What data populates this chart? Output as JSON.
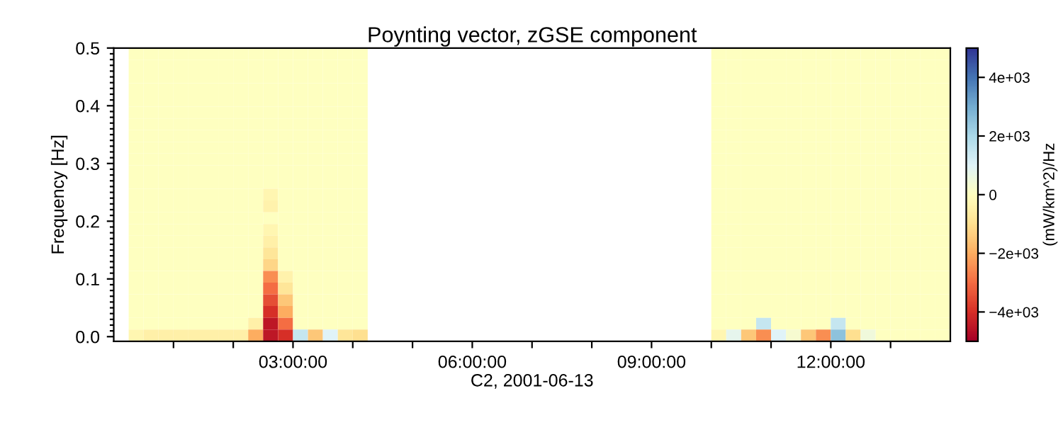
{
  "chart_data": {
    "type": "heatmap",
    "title": "Poynting vector, zGSE component",
    "xlabel": "C2, 2001-06-13",
    "ylabel": "Frequency [Hz]",
    "clabel": "(mW/km^2)/Hz",
    "x": [
      0.375,
      0.625,
      0.875,
      1.125,
      1.375,
      1.625,
      1.875,
      2.125,
      2.375,
      2.625,
      2.875,
      3.125,
      3.375,
      3.625,
      3.875,
      4.125,
      4.375,
      4.625,
      4.875,
      5.125,
      5.375,
      5.625,
      5.875,
      6.125,
      6.375,
      6.625,
      6.875,
      7.125,
      7.375,
      7.625,
      7.875,
      8.125,
      8.375,
      8.625,
      8.875,
      9.125,
      9.375,
      9.625,
      9.875,
      10.125,
      10.375,
      10.625,
      10.875,
      11.125,
      11.375,
      11.625,
      11.875,
      12.125,
      12.375,
      12.625,
      12.875,
      13.125,
      13.375,
      13.625,
      13.875
    ],
    "xlim": [
      0,
      14
    ],
    "ylim": [
      -0.008,
      0.5
    ],
    "xticks": [
      {
        "value": 1,
        "label": null
      },
      {
        "value": 2,
        "label": null
      },
      {
        "value": 3,
        "label": "03:00:00"
      },
      {
        "value": 4,
        "label": null
      },
      {
        "value": 5,
        "label": null
      },
      {
        "value": 6,
        "label": "06:00:00"
      },
      {
        "value": 7,
        "label": null
      },
      {
        "value": 8,
        "label": null
      },
      {
        "value": 9,
        "label": "09:00:00"
      },
      {
        "value": 10,
        "label": null
      },
      {
        "value": 11,
        "label": null
      },
      {
        "value": 12,
        "label": "12:00:00"
      },
      {
        "value": 13,
        "label": null
      }
    ],
    "yticks": [
      {
        "value": 0,
        "label": "0.0"
      },
      {
        "value": 0.1,
        "label": "0.1"
      },
      {
        "value": 0.2,
        "label": "0.2"
      },
      {
        "value": 0.3,
        "label": "0.3"
      },
      {
        "value": 0.4,
        "label": "0.4"
      },
      {
        "value": 0.5,
        "label": "0.5"
      },
      {
        "value": 0.01,
        "label": null
      },
      {
        "value": 0.02,
        "label": null
      },
      {
        "value": 0.03,
        "label": null
      },
      {
        "value": 0.04,
        "label": null
      },
      {
        "value": 0.05,
        "label": null
      },
      {
        "value": 0.06,
        "label": null
      },
      {
        "value": 0.07,
        "label": null
      },
      {
        "value": 0.08,
        "label": null
      },
      {
        "value": 0.09,
        "label": null
      },
      {
        "value": 0.11,
        "label": null
      },
      {
        "value": 0.12,
        "label": null
      },
      {
        "value": 0.13,
        "label": null
      },
      {
        "value": 0.14,
        "label": null
      },
      {
        "value": 0.15,
        "label": null
      },
      {
        "value": 0.16,
        "label": null
      },
      {
        "value": 0.17,
        "label": null
      },
      {
        "value": 0.18,
        "label": null
      },
      {
        "value": 0.19,
        "label": null
      },
      {
        "value": 0.21,
        "label": null
      },
      {
        "value": 0.22,
        "label": null
      },
      {
        "value": 0.23,
        "label": null
      },
      {
        "value": 0.24,
        "label": null
      },
      {
        "value": 0.25,
        "label": null
      },
      {
        "value": 0.26,
        "label": null
      },
      {
        "value": 0.27,
        "label": null
      },
      {
        "value": 0.28,
        "label": null
      },
      {
        "value": 0.29,
        "label": null
      },
      {
        "value": 0.31,
        "label": null
      },
      {
        "value": 0.32,
        "label": null
      },
      {
        "value": 0.33,
        "label": null
      },
      {
        "value": 0.34,
        "label": null
      },
      {
        "value": 0.35,
        "label": null
      },
      {
        "value": 0.36,
        "label": null
      },
      {
        "value": 0.37,
        "label": null
      },
      {
        "value": 0.38,
        "label": null
      },
      {
        "value": 0.39,
        "label": null
      },
      {
        "value": 0.41,
        "label": null
      },
      {
        "value": 0.42,
        "label": null
      },
      {
        "value": 0.43,
        "label": null
      },
      {
        "value": 0.44,
        "label": null
      },
      {
        "value": 0.45,
        "label": null
      },
      {
        "value": 0.46,
        "label": null
      },
      {
        "value": 0.47,
        "label": null
      },
      {
        "value": 0.48,
        "label": null
      },
      {
        "value": 0.49,
        "label": null
      }
    ],
    "clim": [
      -5000,
      5000
    ],
    "cticks": [
      {
        "value": -4000,
        "label": "−4e+03"
      },
      {
        "value": -2000,
        "label": "−2e+03"
      },
      {
        "value": 0,
        "label": "0"
      },
      {
        "value": 2000,
        "label": "2e+03"
      },
      {
        "value": 4000,
        "label": "4e+03"
      }
    ],
    "grid": false,
    "cells": [
      [
        0,
        0,
        0,
        0,
        0,
        0,
        0,
        0,
        0,
        0,
        0,
        0,
        0,
        0,
        0,
        0,
        null,
        null,
        null,
        null,
        null,
        null,
        null,
        null,
        null,
        null,
        null,
        null,
        null,
        null,
        null,
        null,
        null,
        null,
        null,
        null,
        null,
        null,
        null,
        0,
        0,
        0,
        0,
        0,
        0,
        0,
        0,
        0,
        0,
        0,
        0,
        0,
        0,
        0,
        0
      ],
      [
        0,
        0,
        0,
        0,
        0,
        0,
        0,
        0,
        0,
        0,
        0,
        0,
        0,
        0,
        0,
        0,
        null,
        null,
        null,
        null,
        null,
        null,
        null,
        null,
        null,
        null,
        null,
        null,
        null,
        null,
        null,
        null,
        null,
        null,
        null,
        null,
        null,
        null,
        null,
        0,
        0,
        0,
        0,
        0,
        0,
        0,
        0,
        0,
        0,
        0,
        0,
        0,
        0,
        0,
        0
      ],
      [
        0,
        0,
        0,
        0,
        0,
        0,
        0,
        0,
        0,
        0,
        0,
        0,
        0,
        0,
        0,
        0,
        null,
        null,
        null,
        null,
        null,
        null,
        null,
        null,
        null,
        null,
        null,
        null,
        null,
        null,
        null,
        null,
        null,
        null,
        null,
        null,
        null,
        null,
        null,
        0,
        0,
        0,
        0,
        0,
        0,
        0,
        0,
        0,
        0,
        0,
        0,
        0,
        0,
        0,
        0
      ],
      [
        0,
        0,
        0,
        0,
        0,
        0,
        0,
        0,
        0,
        0,
        0,
        0,
        0,
        0,
        0,
        0,
        null,
        null,
        null,
        null,
        null,
        null,
        null,
        null,
        null,
        null,
        null,
        null,
        null,
        null,
        null,
        null,
        null,
        null,
        null,
        null,
        null,
        null,
        null,
        0,
        0,
        0,
        0,
        0,
        0,
        0,
        0,
        0,
        0,
        0,
        0,
        0,
        0,
        0,
        0
      ],
      [
        0,
        0,
        0,
        0,
        0,
        0,
        0,
        0,
        0,
        0,
        0,
        0,
        0,
        0,
        0,
        0,
        null,
        null,
        null,
        null,
        null,
        null,
        null,
        null,
        null,
        null,
        null,
        null,
        null,
        null,
        null,
        null,
        null,
        null,
        null,
        null,
        null,
        null,
        null,
        0,
        0,
        0,
        0,
        0,
        0,
        0,
        0,
        0,
        0,
        0,
        0,
        0,
        0,
        0,
        0
      ],
      [
        0,
        0,
        0,
        0,
        0,
        0,
        0,
        0,
        0,
        0,
        0,
        0,
        0,
        0,
        0,
        0,
        null,
        null,
        null,
        null,
        null,
        null,
        null,
        null,
        null,
        null,
        null,
        null,
        null,
        null,
        null,
        null,
        null,
        null,
        null,
        null,
        null,
        null,
        null,
        0,
        0,
        0,
        0,
        0,
        0,
        0,
        0,
        0,
        0,
        0,
        0,
        0,
        0,
        0,
        0
      ],
      [
        0,
        0,
        0,
        0,
        0,
        0,
        0,
        0,
        0,
        0,
        0,
        0,
        0,
        0,
        0,
        0,
        null,
        null,
        null,
        null,
        null,
        null,
        null,
        null,
        null,
        null,
        null,
        null,
        null,
        null,
        null,
        null,
        null,
        null,
        null,
        null,
        null,
        null,
        null,
        0,
        0,
        0,
        0,
        0,
        0,
        0,
        0,
        0,
        0,
        0,
        0,
        0,
        0,
        0,
        0
      ],
      [
        0,
        0,
        0,
        0,
        0,
        0,
        0,
        0,
        0,
        0,
        0,
        0,
        0,
        0,
        0,
        0,
        null,
        null,
        null,
        null,
        null,
        null,
        null,
        null,
        null,
        null,
        null,
        null,
        null,
        null,
        null,
        null,
        null,
        null,
        null,
        null,
        null,
        null,
        null,
        0,
        0,
        0,
        0,
        0,
        0,
        0,
        0,
        0,
        0,
        0,
        0,
        0,
        0,
        0,
        0
      ],
      [
        0,
        0,
        0,
        0,
        0,
        0,
        0,
        0,
        0,
        0,
        0,
        0,
        0,
        0,
        0,
        0,
        null,
        null,
        null,
        null,
        null,
        null,
        null,
        null,
        null,
        null,
        null,
        null,
        null,
        null,
        null,
        null,
        null,
        null,
        null,
        null,
        null,
        null,
        null,
        0,
        0,
        0,
        0,
        0,
        0,
        0,
        0,
        0,
        0,
        0,
        0,
        0,
        0,
        0,
        0
      ],
      [
        0,
        0,
        0,
        0,
        0,
        0,
        0,
        0,
        0,
        0,
        0,
        0,
        0,
        0,
        0,
        0,
        null,
        null,
        null,
        null,
        null,
        null,
        null,
        null,
        null,
        null,
        null,
        null,
        null,
        null,
        null,
        null,
        null,
        null,
        null,
        null,
        null,
        null,
        null,
        0,
        0,
        0,
        0,
        0,
        0,
        0,
        0,
        0,
        0,
        0,
        0,
        0,
        0,
        0,
        0
      ],
      [
        0,
        0,
        0,
        0,
        0,
        0,
        0,
        0,
        0,
        0,
        0,
        0,
        0,
        0,
        0,
        0,
        null,
        null,
        null,
        null,
        null,
        null,
        null,
        null,
        null,
        null,
        null,
        null,
        null,
        null,
        null,
        null,
        null,
        null,
        null,
        null,
        null,
        null,
        null,
        0,
        0,
        0,
        0,
        0,
        0,
        0,
        0,
        0,
        0,
        0,
        0,
        0,
        0,
        0,
        0
      ],
      [
        0,
        0,
        0,
        0,
        0,
        0,
        0,
        0,
        0,
        0,
        0,
        0,
        0,
        0,
        0,
        0,
        null,
        null,
        null,
        null,
        null,
        null,
        null,
        null,
        null,
        null,
        null,
        null,
        null,
        null,
        null,
        null,
        null,
        null,
        null,
        null,
        null,
        null,
        null,
        0,
        0,
        0,
        0,
        0,
        0,
        0,
        0,
        0,
        0,
        0,
        0,
        0,
        0,
        0,
        0
      ],
      [
        0,
        0,
        0,
        0,
        0,
        0,
        0,
        0,
        0,
        -300,
        0,
        0,
        0,
        0,
        0,
        0,
        null,
        null,
        null,
        null,
        null,
        null,
        null,
        null,
        null,
        null,
        null,
        null,
        null,
        null,
        null,
        null,
        null,
        null,
        null,
        null,
        null,
        null,
        null,
        0,
        0,
        0,
        0,
        0,
        0,
        0,
        0,
        0,
        0,
        0,
        0,
        0,
        0,
        0,
        0
      ],
      [
        0,
        0,
        0,
        0,
        0,
        0,
        0,
        0,
        0,
        -400,
        0,
        0,
        0,
        0,
        0,
        0,
        null,
        null,
        null,
        null,
        null,
        null,
        null,
        null,
        null,
        null,
        null,
        null,
        null,
        null,
        null,
        null,
        null,
        null,
        null,
        null,
        null,
        null,
        null,
        0,
        0,
        0,
        0,
        0,
        0,
        0,
        0,
        0,
        0,
        0,
        0,
        0,
        0,
        0,
        0
      ],
      [
        0,
        0,
        0,
        0,
        0,
        0,
        0,
        0,
        0,
        0,
        0,
        0,
        0,
        0,
        0,
        0,
        null,
        null,
        null,
        null,
        null,
        null,
        null,
        null,
        null,
        null,
        null,
        null,
        null,
        null,
        null,
        null,
        null,
        null,
        null,
        null,
        null,
        null,
        null,
        0,
        0,
        0,
        0,
        0,
        0,
        0,
        0,
        0,
        0,
        0,
        0,
        0,
        0,
        0,
        0
      ],
      [
        0,
        0,
        0,
        0,
        0,
        0,
        0,
        0,
        0,
        -300,
        0,
        0,
        0,
        0,
        0,
        0,
        null,
        null,
        null,
        null,
        null,
        null,
        null,
        null,
        null,
        null,
        null,
        null,
        null,
        null,
        null,
        null,
        null,
        null,
        null,
        null,
        null,
        null,
        null,
        0,
        0,
        0,
        0,
        0,
        0,
        0,
        0,
        0,
        0,
        0,
        0,
        0,
        0,
        0,
        0
      ],
      [
        0,
        0,
        0,
        0,
        0,
        0,
        0,
        0,
        0,
        -500,
        0,
        0,
        0,
        0,
        0,
        0,
        null,
        null,
        null,
        null,
        null,
        null,
        null,
        null,
        null,
        null,
        null,
        null,
        null,
        null,
        null,
        null,
        null,
        null,
        null,
        null,
        null,
        null,
        null,
        0,
        0,
        0,
        0,
        0,
        0,
        0,
        0,
        0,
        0,
        0,
        0,
        0,
        0,
        0,
        0
      ],
      [
        0,
        0,
        0,
        0,
        0,
        0,
        0,
        0,
        0,
        -800,
        0,
        0,
        0,
        0,
        0,
        0,
        null,
        null,
        null,
        null,
        null,
        null,
        null,
        null,
        null,
        null,
        null,
        null,
        null,
        null,
        null,
        null,
        null,
        null,
        null,
        null,
        null,
        null,
        null,
        0,
        0,
        0,
        0,
        0,
        0,
        0,
        0,
        0,
        0,
        0,
        0,
        0,
        0,
        0,
        0
      ],
      [
        0,
        0,
        0,
        0,
        0,
        0,
        0,
        0,
        0,
        -1200,
        0,
        0,
        0,
        0,
        0,
        0,
        null,
        null,
        null,
        null,
        null,
        null,
        null,
        null,
        null,
        null,
        null,
        null,
        null,
        null,
        null,
        null,
        null,
        null,
        null,
        null,
        null,
        null,
        null,
        0,
        0,
        0,
        0,
        0,
        0,
        0,
        0,
        0,
        0,
        0,
        0,
        0,
        0,
        0,
        0
      ],
      [
        0,
        0,
        0,
        0,
        0,
        0,
        0,
        0,
        0,
        -2500,
        -400,
        0,
        0,
        0,
        0,
        0,
        null,
        null,
        null,
        null,
        null,
        null,
        null,
        null,
        null,
        null,
        null,
        null,
        null,
        null,
        null,
        null,
        null,
        null,
        null,
        null,
        null,
        null,
        null,
        0,
        0,
        0,
        0,
        0,
        0,
        0,
        0,
        0,
        0,
        0,
        0,
        0,
        0,
        0,
        0
      ],
      [
        0,
        0,
        0,
        0,
        0,
        0,
        0,
        0,
        0,
        -3000,
        -800,
        0,
        0,
        0,
        0,
        0,
        null,
        null,
        null,
        null,
        null,
        null,
        null,
        null,
        null,
        null,
        null,
        null,
        null,
        null,
        null,
        null,
        null,
        null,
        null,
        null,
        null,
        null,
        null,
        0,
        0,
        0,
        0,
        0,
        0,
        0,
        0,
        0,
        0,
        0,
        0,
        0,
        0,
        0,
        0
      ],
      [
        0,
        0,
        0,
        0,
        0,
        0,
        0,
        0,
        0,
        -3500,
        -1500,
        0,
        0,
        0,
        0,
        0,
        null,
        null,
        null,
        null,
        null,
        null,
        null,
        null,
        null,
        null,
        null,
        null,
        null,
        null,
        null,
        null,
        null,
        null,
        null,
        null,
        null,
        null,
        null,
        0,
        0,
        0,
        0,
        0,
        0,
        0,
        0,
        0,
        0,
        0,
        0,
        0,
        0,
        0,
        0
      ],
      [
        0,
        0,
        0,
        0,
        0,
        0,
        0,
        0,
        0,
        -4000,
        -2000,
        0,
        0,
        0,
        0,
        0,
        null,
        null,
        null,
        null,
        null,
        null,
        null,
        null,
        null,
        null,
        null,
        null,
        null,
        null,
        null,
        null,
        null,
        null,
        null,
        null,
        null,
        null,
        null,
        0,
        0,
        0,
        0,
        0,
        0,
        0,
        0,
        0,
        0,
        0,
        0,
        0,
        0,
        0,
        0
      ],
      [
        0,
        0,
        0,
        0,
        0,
        0,
        0,
        0,
        -500,
        -4500,
        -3000,
        0,
        0,
        0,
        0,
        0,
        null,
        null,
        null,
        null,
        null,
        null,
        null,
        null,
        null,
        null,
        null,
        null,
        null,
        null,
        null,
        null,
        null,
        null,
        null,
        null,
        null,
        null,
        null,
        0,
        0,
        0,
        1500,
        0,
        0,
        0,
        0,
        1500,
        0,
        0,
        0,
        0,
        0,
        0,
        0
      ],
      [
        -300,
        -500,
        -500,
        -500,
        -500,
        -500,
        -500,
        -500,
        -2000,
        -4500,
        -4000,
        1500,
        -1500,
        1000,
        -800,
        -1000,
        null,
        null,
        null,
        null,
        null,
        null,
        null,
        null,
        null,
        null,
        null,
        null,
        null,
        null,
        null,
        null,
        null,
        null,
        null,
        null,
        null,
        null,
        null,
        -300,
        800,
        -1500,
        -2500,
        1000,
        300,
        -1500,
        -2500,
        2500,
        -1000,
        500,
        0,
        0,
        0,
        0,
        0
      ]
    ]
  }
}
